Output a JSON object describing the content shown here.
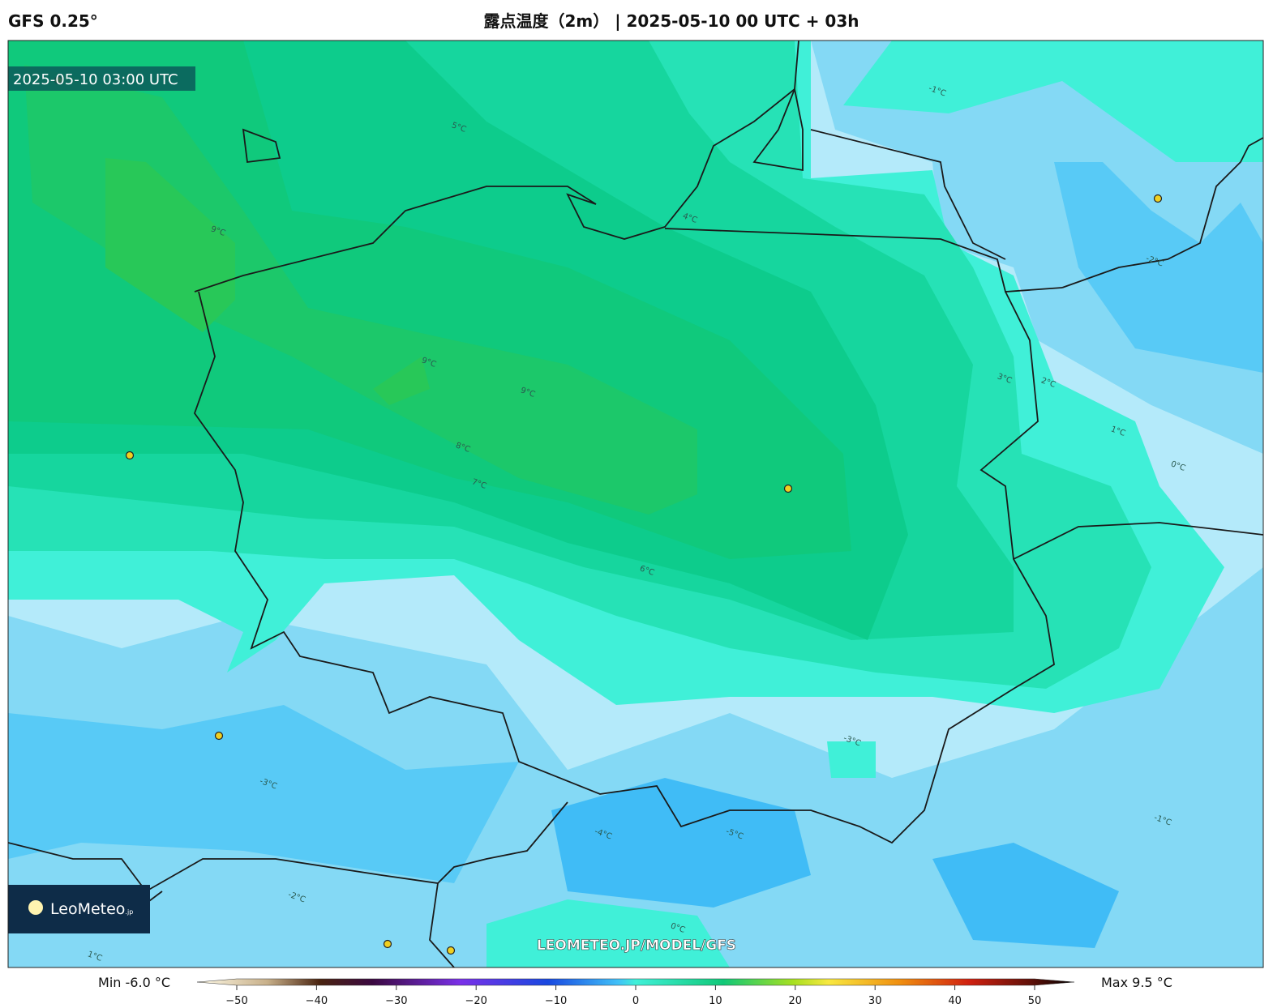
{
  "header": {
    "model": "GFS 0.25°",
    "title": "露点温度（2m） | 2025-05-10 00 UTC + 03h"
  },
  "map": {
    "timestamp": "2025-05-10 03:00 UTC",
    "watermark": "LEOMETEO.JP/MODEL/GFS",
    "logo": "LeoMeteo",
    "logo_suffix": ".jp",
    "contour_labels": [
      "9°C",
      "9°C",
      "9°C",
      "8°C",
      "7°C",
      "6°C",
      "5°C",
      "4°C",
      "3°C",
      "2°C",
      "1°C",
      "0°C",
      "-1°C",
      "-2°C",
      "-3°C",
      "-4°C",
      "-5°C",
      "-1°C",
      "-2°C",
      "-3°C",
      "0°C",
      "1°C"
    ]
  },
  "colorbar": {
    "min": "Min -6.0 °C",
    "max": "Max 9.5 °C",
    "ticks": [
      "−50",
      "−40",
      "−30",
      "−20",
      "−10",
      "0",
      "10",
      "20",
      "30",
      "40",
      "50"
    ]
  }
}
